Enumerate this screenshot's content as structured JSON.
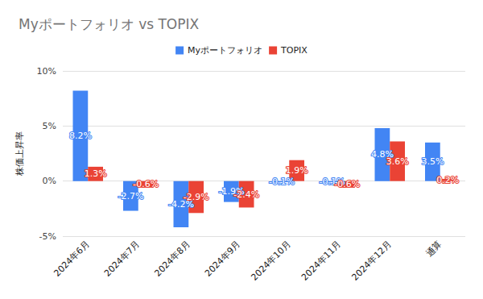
{
  "chart_data": {
    "type": "bar",
    "title": "Myポートフォリオ vs TOPIX",
    "y_label": "株価上昇率",
    "categories": [
      "2024年6月",
      "2024年7月",
      "2024年8月",
      "2024年9月",
      "2024年10月",
      "2024年11月",
      "2024年12月",
      "通算"
    ],
    "series": [
      {
        "name": "Myポートフォリオ",
        "color": "#4285f4",
        "values": [
          8.2,
          -2.7,
          -4.2,
          -1.9,
          -0.1,
          -0.1,
          4.8,
          3.5
        ],
        "value_labels": [
          "8.2%",
          "-2.7%",
          "-4.2%",
          "-1.9%",
          "-0.1%",
          "-0.1%",
          "4.8%",
          "3.5%"
        ]
      },
      {
        "name": "TOPIX",
        "color": "#ea4335",
        "values": [
          1.3,
          -0.6,
          -2.9,
          -2.4,
          1.9,
          -0.6,
          3.6,
          0.2
        ],
        "value_labels": [
          "1.3%",
          "-0.6%",
          "-2.9%",
          "-2.4%",
          "1.9%",
          "-0.6%",
          "3.6%",
          "0.2%"
        ]
      }
    ],
    "ylim": [
      -5,
      10
    ],
    "yticks": [
      {
        "value": -5,
        "label": "-5%"
      },
      {
        "value": 0,
        "label": "0%"
      },
      {
        "value": 5,
        "label": "5%"
      },
      {
        "value": 10,
        "label": "10%"
      }
    ],
    "grid": true,
    "legend": "top",
    "data_labels": true
  }
}
